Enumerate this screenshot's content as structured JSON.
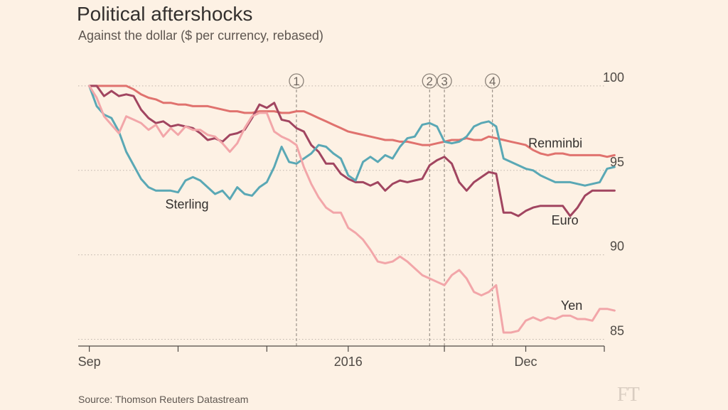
{
  "title": "Political aftershocks",
  "subtitle": "Against the dollar ($ per currency, rebased)",
  "source": "Source: Thomson Reuters Datastream",
  "logo": "FT",
  "chart_data": {
    "type": "line",
    "title": "Political aftershocks",
    "subtitle": "Against the dollar ($ per currency, rebased)",
    "xlabel": "",
    "ylabel": "",
    "x": [
      0,
      1,
      2,
      3,
      4,
      5,
      6,
      7,
      8,
      9,
      10,
      11,
      12,
      13,
      14,
      15,
      16,
      17,
      18,
      19,
      20,
      21,
      22,
      23,
      24,
      25,
      26,
      27,
      28,
      29,
      30,
      31,
      32,
      33,
      34,
      35,
      36,
      37,
      38,
      39,
      40,
      41,
      42,
      43,
      44,
      45,
      46,
      47,
      48,
      49,
      50,
      51,
      52,
      53,
      54,
      55,
      56,
      57,
      58,
      59,
      60,
      61,
      62,
      63,
      64,
      65,
      66,
      67,
      68,
      69,
      70,
      71
    ],
    "x_ticks": [
      {
        "label": "Sep",
        "x": 0
      },
      {
        "label": "2016",
        "x": 35
      },
      {
        "label": "Dec",
        "x": 59
      }
    ],
    "x_minor_ticks": [
      12,
      24,
      48
    ],
    "xlim": [
      -1.5,
      72.5
    ],
    "ylim": [
      84.6,
      101.3
    ],
    "y_ticks": [
      85,
      90,
      95,
      100
    ],
    "grid": "horizontal-dotted",
    "series": [
      {
        "name": "Renminbi",
        "color": "#e0726e",
        "values": [
          100,
          100,
          100,
          100,
          100,
          100,
          99.8,
          99.5,
          99.3,
          99.2,
          99,
          99,
          98.9,
          98.9,
          98.8,
          98.8,
          98.8,
          98.7,
          98.6,
          98.5,
          98.5,
          98.4,
          98.4,
          98.5,
          98.5,
          98.5,
          98.4,
          98.4,
          98.5,
          98.5,
          98.3,
          98.1,
          97.9,
          97.7,
          97.5,
          97.3,
          97.2,
          97.1,
          97,
          96.9,
          96.8,
          96.8,
          96.7,
          96.7,
          96.6,
          96.5,
          96.5,
          96.6,
          96.7,
          96.8,
          96.8,
          96.9,
          96.8,
          96.8,
          97,
          96.9,
          96.8,
          96.7,
          96.6,
          96.5,
          96.2,
          96,
          95.9,
          96,
          96,
          95.9,
          95.9,
          95.9,
          95.9,
          95.9,
          95.8,
          95.9
        ]
      },
      {
        "name": "Euro",
        "color": "#a14560",
        "values": [
          100,
          100,
          99.4,
          99.7,
          99.4,
          99.5,
          99.4,
          98.6,
          98.1,
          97.8,
          97.9,
          97.6,
          97.7,
          97.6,
          97.5,
          97.2,
          96.8,
          96.9,
          96.7,
          97.1,
          97.2,
          97.4,
          98.1,
          98.9,
          98.7,
          99,
          98,
          97.9,
          97.5,
          97.3,
          96.5,
          96.1,
          95.4,
          95.4,
          94.8,
          94.5,
          94.3,
          94.3,
          94.1,
          94.3,
          93.8,
          94.2,
          94.4,
          94.3,
          94.4,
          94.5,
          95.3,
          95.6,
          95.8,
          95.4,
          94.3,
          93.8,
          94.3,
          94.6,
          94.9,
          94.8,
          92.5,
          92.5,
          92.3,
          92.6,
          92.8,
          92.9,
          92.9,
          92.9,
          92.9,
          92.3,
          92.8,
          93.5,
          93.8,
          93.8,
          93.8,
          93.8
        ]
      },
      {
        "name": "Sterling",
        "color": "#5aa8b5",
        "values": [
          100,
          98.8,
          98.3,
          98.1,
          97.3,
          96.1,
          95.3,
          94.5,
          94,
          93.8,
          93.8,
          93.8,
          93.7,
          94.4,
          94.6,
          94.4,
          94,
          93.6,
          93.8,
          93.3,
          94,
          93.6,
          93.5,
          94,
          94.3,
          95.2,
          96.4,
          95.5,
          95.4,
          95.7,
          96,
          96.5,
          96.4,
          96,
          95.7,
          94.7,
          94.4,
          95.5,
          95.8,
          95.5,
          95.9,
          95.7,
          96.4,
          96.9,
          97,
          97.7,
          97.8,
          97.6,
          96.7,
          96.6,
          96.7,
          97,
          97.6,
          97.8,
          97.9,
          97.6,
          95.7,
          95.5,
          95.3,
          95.1,
          95,
          94.7,
          94.5,
          94.3,
          94.3,
          94.3,
          94.2,
          94.1,
          94.2,
          94.3,
          95.1,
          95.2
        ]
      },
      {
        "name": "Yen",
        "color": "#f2a6a9",
        "values": [
          100,
          99.3,
          98.2,
          97.7,
          97.2,
          98.2,
          98,
          97.8,
          97.4,
          97.7,
          97,
          97.5,
          97.1,
          97.6,
          97.4,
          97.4,
          97.1,
          97,
          96.6,
          96.1,
          96.6,
          97.5,
          98.2,
          98.4,
          98.4,
          97.3,
          97,
          96.8,
          96.5,
          95.2,
          94.2,
          93.4,
          92.8,
          92.5,
          92.5,
          91.6,
          91.3,
          90.9,
          90.3,
          89.6,
          89.5,
          89.6,
          89.9,
          89.6,
          89.2,
          88.8,
          88.6,
          88.4,
          88.2,
          88.8,
          89.1,
          88.6,
          87.8,
          87.6,
          87.8,
          88.2,
          85.4,
          85.4,
          85.5,
          86.1,
          86.3,
          86.1,
          86.3,
          86.2,
          86.4,
          86.4,
          86.2,
          86.2,
          86.1,
          86.8,
          86.8,
          86.7
        ]
      }
    ],
    "series_labels": [
      {
        "series": "Renminbi",
        "x": 63,
        "y": 96.35
      },
      {
        "series": "Euro",
        "x": 64.3,
        "y": 91.8
      },
      {
        "series": "Sterling",
        "x": 13.2,
        "y": 92.75
      },
      {
        "series": "Yen",
        "x": 65.2,
        "y": 86.75
      }
    ],
    "events": [
      {
        "label": "1",
        "x": 28
      },
      {
        "label": "2",
        "x": 46
      },
      {
        "label": "3",
        "x": 48
      },
      {
        "label": "4",
        "x": 54.5
      }
    ]
  }
}
